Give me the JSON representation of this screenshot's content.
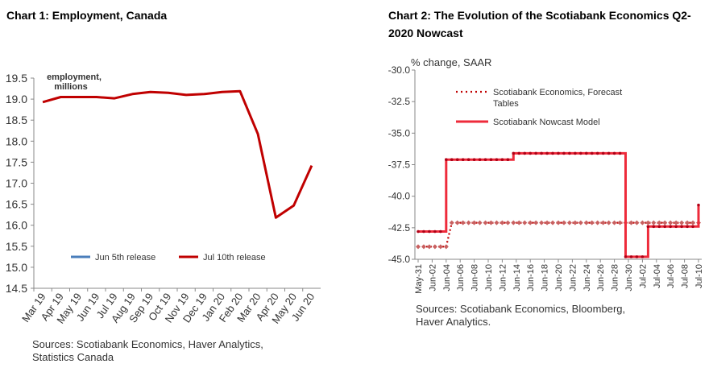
{
  "chart_data": [
    {
      "type": "line",
      "title": "Chart 1: Employment, Canada",
      "annotation": [
        "employment,",
        "millions"
      ],
      "categories": [
        "Mar 19",
        "Apr 19",
        "May 19",
        "Jun 19",
        "Jul 19",
        "Aug 19",
        "Sep 19",
        "Oct 19",
        "Nov 19",
        "Dec 19",
        "Jan 20",
        "Feb 20",
        "Mar 20",
        "Apr 20",
        "May 20",
        "Jun 20"
      ],
      "ylim": [
        14.5,
        19.5
      ],
      "yticks": [
        "14.5",
        "15.0",
        "15.5",
        "16.0",
        "16.5",
        "17.0",
        "17.5",
        "18.0",
        "18.5",
        "19.0",
        "19.5"
      ],
      "series": [
        {
          "name": "Jun 5th release",
          "color": "#4a7ebb",
          "values": [
            18.93,
            19.05,
            19.05,
            19.05,
            19.02,
            19.12,
            19.17,
            19.15,
            19.1,
            19.12,
            19.17,
            19.19,
            18.17,
            16.18,
            null,
            null
          ]
        },
        {
          "name": "Jul 10th release",
          "color": "#c00000",
          "values": [
            18.93,
            19.05,
            19.05,
            19.05,
            19.02,
            19.12,
            19.17,
            19.15,
            19.1,
            19.12,
            19.17,
            19.19,
            18.17,
            16.18,
            16.47,
            17.42
          ]
        }
      ],
      "legend": "bottom",
      "source": [
        "Sources: Scotiabank Economics, Haver Analytics,",
        "Statistics Canada"
      ]
    },
    {
      "type": "line",
      "title": "Chart 2: The Evolution of the Scotiabank Economics Q2-2020 Nowcast",
      "ylabel": "% change, SAAR",
      "ylim": [
        -45.0,
        -30.0
      ],
      "yticks": [
        "-30.0",
        "-32.5",
        "-35.0",
        "-37.5",
        "-40.0",
        "-42.5",
        "-45.0"
      ],
      "xticks": [
        "May-31",
        "Jun-02",
        "Jun-04",
        "Jun-06",
        "Jun-08",
        "Jun-10",
        "Jun-12",
        "Jun-14",
        "Jun-16",
        "Jun-18",
        "Jun-20",
        "Jun-22",
        "Jun-24",
        "Jun-26",
        "Jun-28",
        "Jun-30",
        "Jul-02",
        "Jul-04",
        "Jul-06",
        "Jul-08",
        "Jul-10"
      ],
      "series": [
        {
          "name": "Scotiabank Economics, Forecast Tables",
          "color": "#c00000",
          "style": "dotted",
          "values": [
            -44.0,
            -44.0,
            -44.0,
            -44.0,
            -44.0,
            -44.0,
            -42.1,
            -42.1,
            -42.1,
            -42.1,
            -42.1,
            -42.1,
            -42.1,
            -42.1,
            -42.1,
            -42.1,
            -42.1,
            -42.1,
            -42.1,
            -42.1,
            -42.1,
            -42.1,
            -42.1,
            -42.1,
            -42.1,
            -42.1,
            -42.1,
            -42.1,
            -42.1,
            -42.1,
            -42.1,
            -42.1,
            -42.1,
            -42.1,
            -42.1,
            -42.1,
            -42.1,
            -42.1,
            -42.1,
            -42.1,
            -42.1,
            -42.1,
            -42.1,
            -42.1,
            -42.1,
            -42.1,
            -42.1,
            -42.1,
            -42.1,
            -42.1,
            -42.1
          ]
        },
        {
          "name": "Scotiabank Nowcast Model",
          "color": "#ee2b3b",
          "style": "solid-markers",
          "values": [
            -42.8,
            -42.8,
            -42.8,
            -42.8,
            -42.8,
            -37.1,
            -37.1,
            -37.1,
            -37.1,
            -37.1,
            -37.1,
            -37.1,
            -37.1,
            -37.1,
            -37.1,
            -37.1,
            -37.1,
            -36.6,
            -36.6,
            -36.6,
            -36.6,
            -36.6,
            -36.6,
            -36.6,
            -36.6,
            -36.6,
            -36.6,
            -36.6,
            -36.6,
            -36.6,
            -36.6,
            -36.6,
            -36.6,
            -36.6,
            -36.6,
            -36.6,
            -36.6,
            -44.8,
            -44.8,
            -44.8,
            -44.8,
            -42.4,
            -42.4,
            -42.4,
            -42.4,
            -42.4,
            -42.4,
            -42.4,
            -42.4,
            -42.4,
            -40.7
          ]
        }
      ],
      "legend": "top-left",
      "source": [
        "Sources: Scotiabank Economics, Bloomberg,",
        "Haver Analytics."
      ]
    }
  ]
}
